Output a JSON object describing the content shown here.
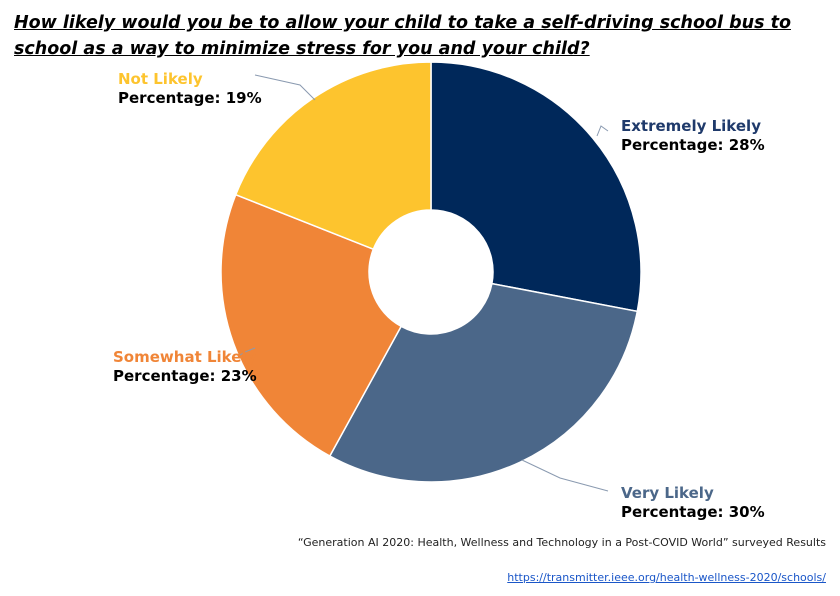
{
  "title": "How likely would you be to allow your child to take a self-driving school bus to school as a way to minimize stress for you and your child?",
  "source_note": "“Generation AI 2020: Health, Wellness and Technology in a Post-COVID World” surveyed Results",
  "link_text": "https://transmitter.ieee.org/health-wellness-2020/schools/",
  "colors": {
    "extremely_likely": "#00285A",
    "very_likely": "#4B6789",
    "somewhat_likely": "#F08537",
    "not_likely": "#FDC42E",
    "leader": "#8a9ab0"
  },
  "chart_data": {
    "type": "pie",
    "donut": true,
    "categories": [
      "Extremely Likely",
      "Very Likely",
      "Somewhat Likely",
      "Not Likely"
    ],
    "values": [
      28,
      30,
      23,
      19
    ],
    "value_label_prefix": "Percentage: ",
    "value_suffix": "%",
    "colors": [
      "#00285A",
      "#4B6789",
      "#F08537",
      "#FDC42E"
    ]
  }
}
